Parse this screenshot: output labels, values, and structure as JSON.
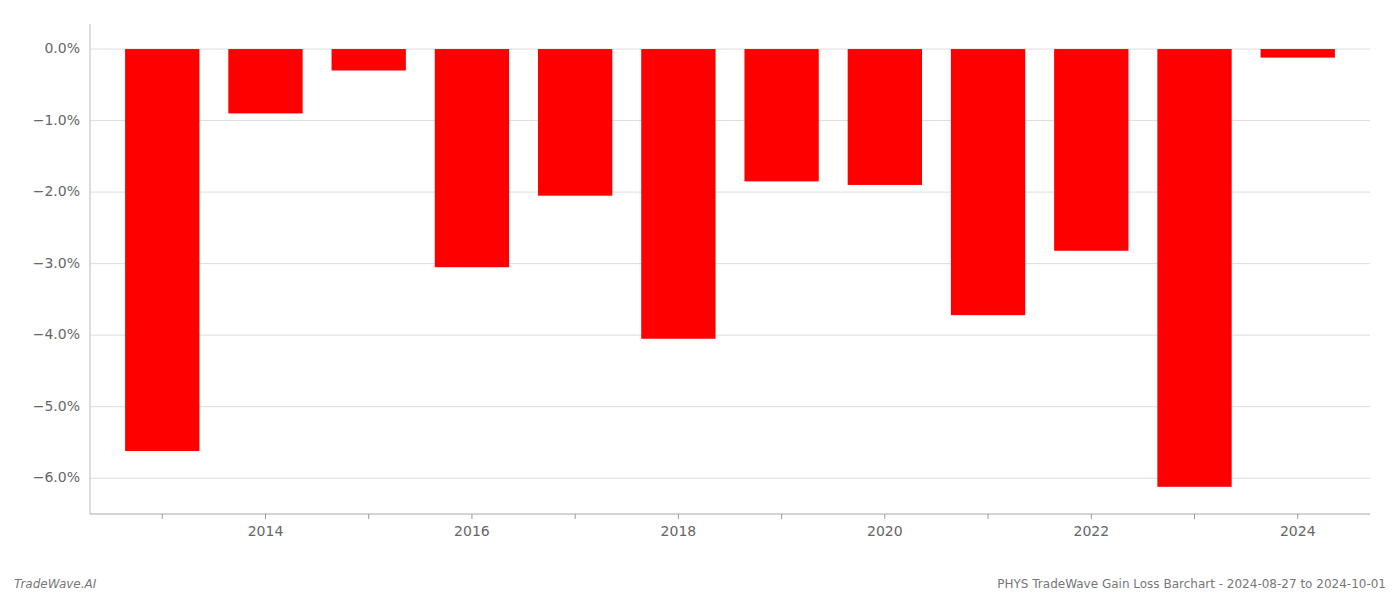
{
  "chart_data": {
    "type": "bar",
    "categories": [
      null,
      "2014",
      null,
      "2016",
      null,
      "2018",
      null,
      "2020",
      null,
      "2022",
      null,
      "2024"
    ],
    "values": [
      -5.62,
      -0.9,
      -0.3,
      -3.05,
      -2.05,
      -4.05,
      -1.85,
      -1.9,
      -3.72,
      -2.82,
      -6.12,
      -0.12
    ],
    "color": "#ff0000",
    "ylim": [
      -6.5,
      0.35
    ],
    "yticks": [
      {
        "value": 0.0,
        "label": "0.0%"
      },
      {
        "value": -1.0,
        "label": "−1.0%"
      },
      {
        "value": -2.0,
        "label": "−2.0%"
      },
      {
        "value": -3.0,
        "label": "−3.0%"
      },
      {
        "value": -4.0,
        "label": "−4.0%"
      },
      {
        "value": -5.0,
        "label": "−5.0%"
      },
      {
        "value": -6.0,
        "label": "−6.0%"
      }
    ],
    "grid": true,
    "annotations": [
      "TradeWave.AI",
      "PHYS TradeWave Gain Loss Barchart - 2024-08-27 to 2024-10-01"
    ]
  }
}
